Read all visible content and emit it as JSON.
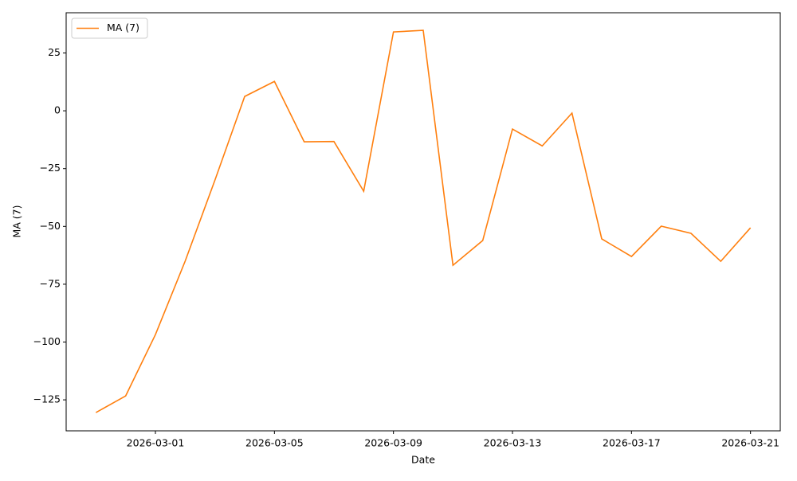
{
  "chart_data": {
    "type": "line",
    "x": [
      "2026-02-27",
      "2026-02-28",
      "2026-03-01",
      "2026-03-02",
      "2026-03-03",
      "2026-03-04",
      "2026-03-05",
      "2026-03-06",
      "2026-03-07",
      "2026-03-08",
      "2026-03-09",
      "2026-03-10",
      "2026-03-11",
      "2026-03-12",
      "2026-03-13",
      "2026-03-14",
      "2026-03-15",
      "2026-03-16",
      "2026-03-17",
      "2026-03-18",
      "2026-03-19",
      "2026-03-20",
      "2026-03-21"
    ],
    "series": [
      {
        "name": "MA (7)",
        "color": "#ff7f0e",
        "values": [
          -130.5,
          -123.3,
          -96.8,
          -65,
          -30,
          6.2,
          12.7,
          -13.4,
          -13.3,
          -34.8,
          34.1,
          34.8,
          -66.8,
          -56.1,
          -7.9,
          -15.2,
          -1,
          -55.4,
          -63,
          -49.9,
          -53,
          -65.1,
          -50.6
        ]
      }
    ],
    "xlabel": "Date",
    "ylabel": "MA (7)",
    "xlim": [
      "2026-02-26",
      "2026-03-22"
    ],
    "xticks": [
      "2026-03-01",
      "2026-03-05",
      "2026-03-09",
      "2026-03-13",
      "2026-03-17",
      "2026-03-21"
    ],
    "ylim": [
      -138.4,
      42.4
    ],
    "yticks": [
      {
        "value": -125,
        "label": "−125"
      },
      {
        "value": -100,
        "label": "−100"
      },
      {
        "value": -75,
        "label": "−75"
      },
      {
        "value": -50,
        "label": "−50"
      },
      {
        "value": -25,
        "label": "−25"
      },
      0,
      25
    ],
    "legend": "upper-left",
    "grid": false
  }
}
